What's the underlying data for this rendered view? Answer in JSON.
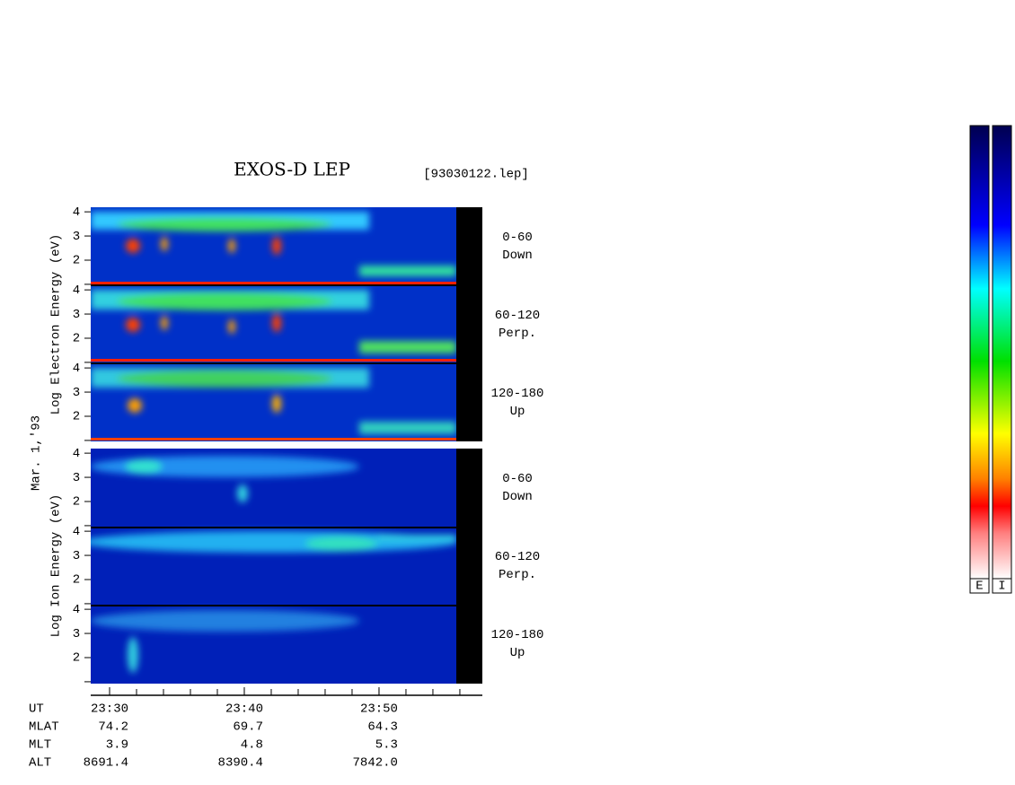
{
  "chart_data": {
    "type": "spectrogram",
    "title": "EXOS-D LEP",
    "file_label": "[93030122.lep]",
    "date_label": "Mar. 1,'93",
    "groups": [
      {
        "ylabel": "Log  Electron  Energy (eV)",
        "panels": [
          {
            "angle": "0-60",
            "direction": "Down"
          },
          {
            "angle": "60-120",
            "direction": "Perp."
          },
          {
            "angle": "120-180",
            "direction": "Up"
          }
        ]
      },
      {
        "ylabel": "Log  Ion  Energy (eV)",
        "panels": [
          {
            "angle": "0-60",
            "direction": "Down"
          },
          {
            "angle": "60-120",
            "direction": "Perp."
          },
          {
            "angle": "120-180",
            "direction": "Up"
          }
        ]
      }
    ],
    "ylim": [
      0.96,
      4.19
    ],
    "yticks": [
      2,
      3,
      4
    ],
    "yminor": [
      1
    ],
    "xlim": [
      28.6,
      57.67
    ],
    "xticks": [
      {
        "value": 30,
        "label": "23:30"
      },
      {
        "value": 40,
        "label": "23:40"
      },
      {
        "value": 50,
        "label": "23:50"
      }
    ],
    "xminor": [
      30,
      32,
      34,
      36,
      38,
      40,
      42,
      44,
      46,
      48,
      50,
      52,
      54,
      56
    ],
    "ephemeris": {
      "labels": [
        "UT",
        "MLAT",
        "MLT",
        "ALT"
      ],
      "rows": [
        [
          "74.2",
          "69.7",
          "64.3"
        ],
        [
          "3.9",
          "4.8",
          "5.3"
        ],
        [
          "8691.4",
          "8390.4",
          "7842.0"
        ]
      ]
    },
    "colorbar_labels": [
      "E",
      "I"
    ]
  }
}
